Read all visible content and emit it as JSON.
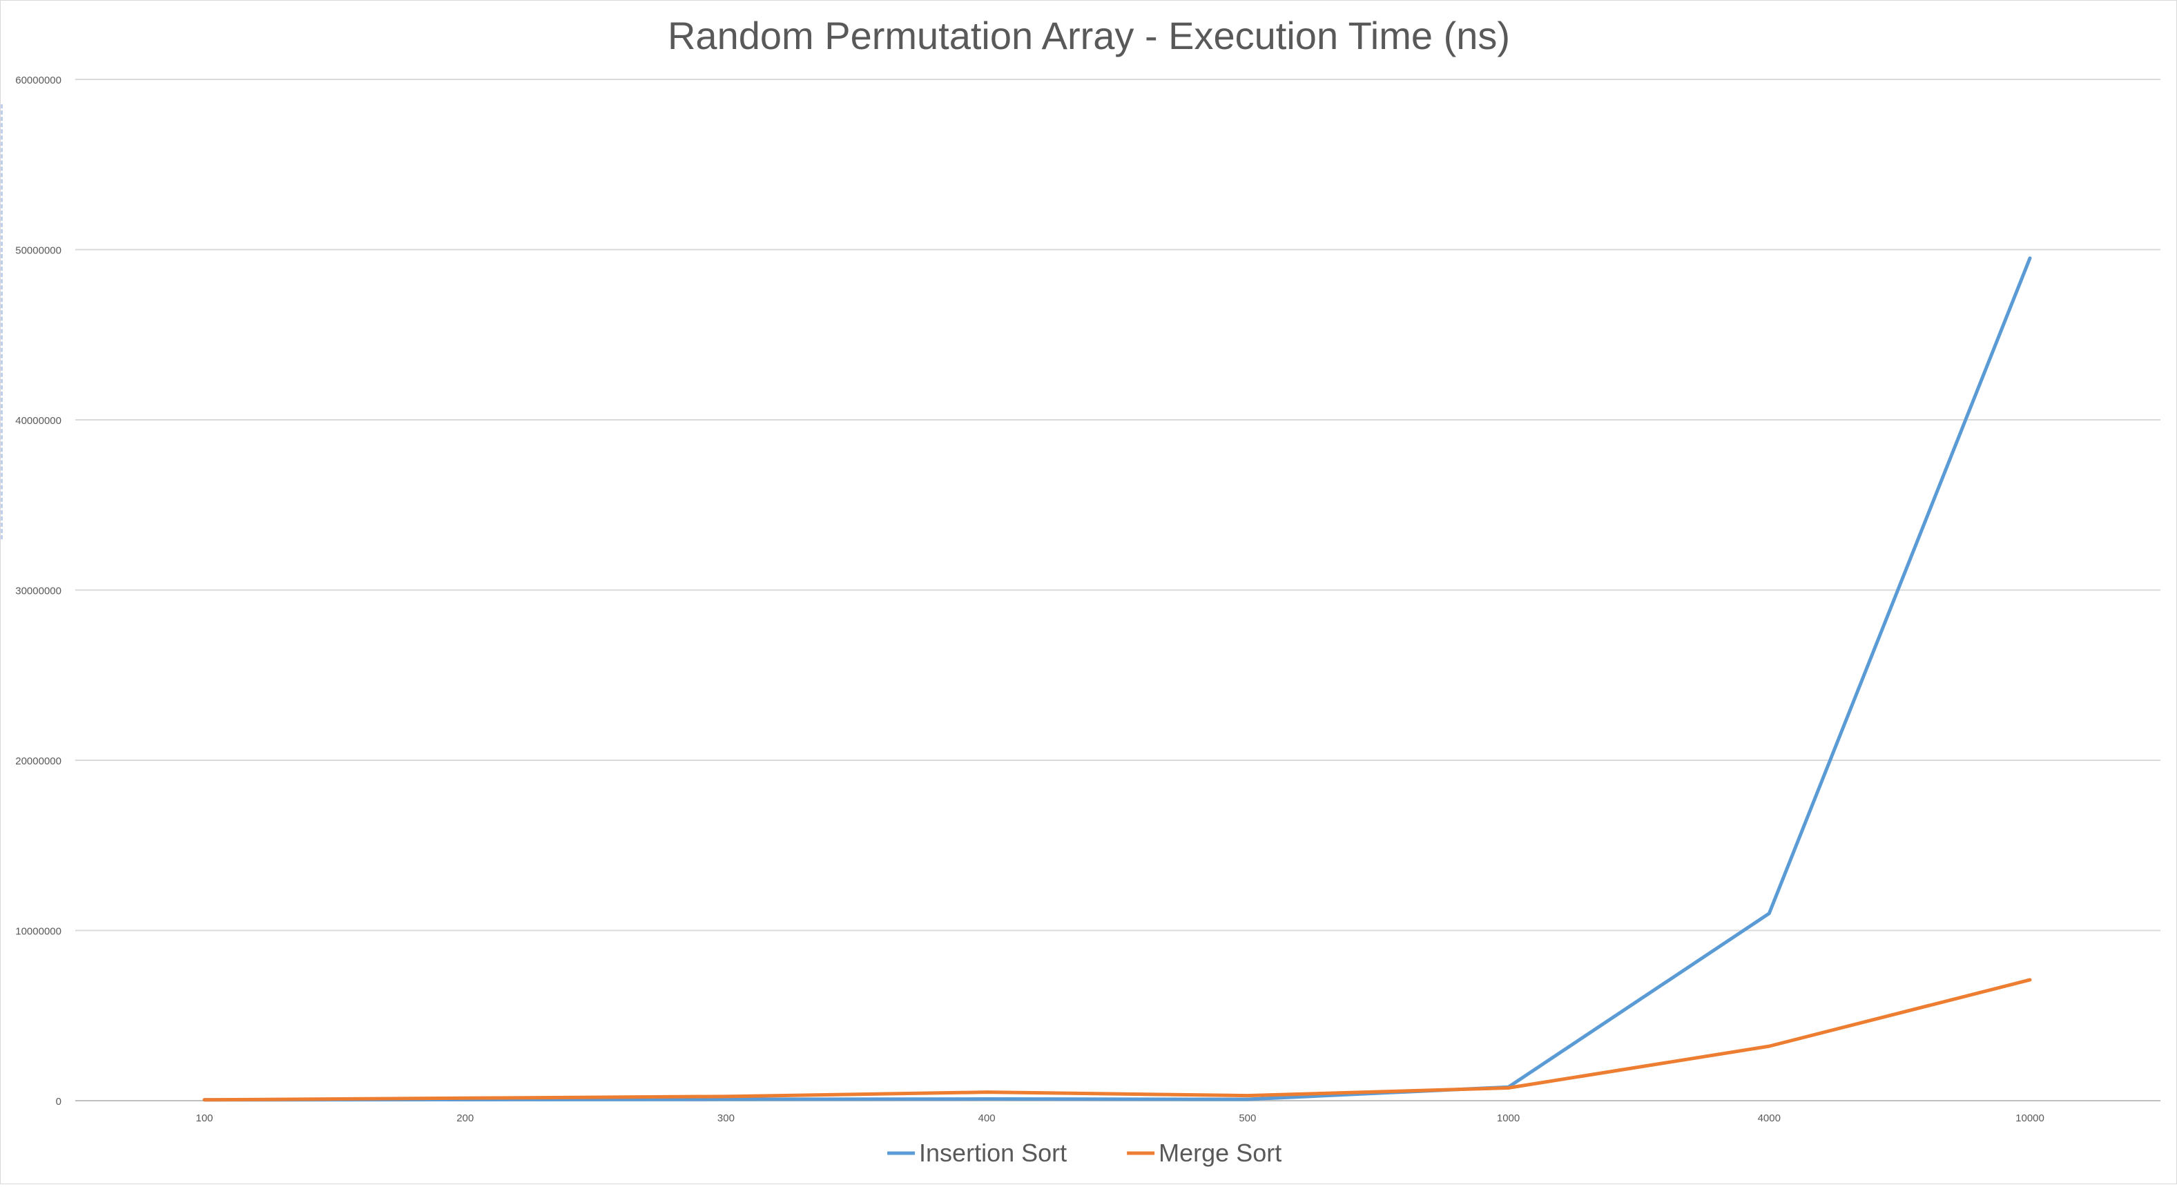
{
  "chart_data": {
    "type": "line",
    "title": "Random Permutation Array - Execution Time (ns)",
    "xlabel": "",
    "ylabel": "",
    "categories": [
      "100",
      "200",
      "300",
      "400",
      "500",
      "1000",
      "4000",
      "10000"
    ],
    "ylim": [
      0,
      60000000
    ],
    "yticks": [
      0,
      10000000,
      20000000,
      30000000,
      40000000,
      50000000,
      60000000
    ],
    "ytick_labels": [
      "0",
      "10000000",
      "20000000",
      "30000000",
      "40000000",
      "50000000",
      "60000000"
    ],
    "grid": true,
    "legend": "bottom",
    "series": [
      {
        "name": "Insertion Sort",
        "color": "#5b9bd5",
        "values": [
          50000,
          60000,
          80000,
          100000,
          80000,
          800000,
          11000000,
          49500000
        ]
      },
      {
        "name": "Merge Sort",
        "color": "#ed7d31",
        "values": [
          50000,
          150000,
          250000,
          500000,
          300000,
          750000,
          3200000,
          7100000
        ]
      }
    ]
  }
}
